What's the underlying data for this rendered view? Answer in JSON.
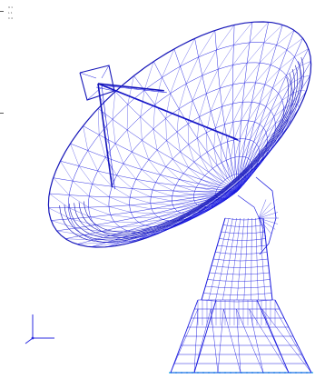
{
  "view": {
    "wire_color": "#1a1adf",
    "dense_color": "#1515b8",
    "axis_color": "#2a2ae0",
    "base_line_color": "#18a8e8",
    "background": "#ffffff"
  },
  "legend": {
    "lines": [
      "U  1",
      "L  1",
      "C  4"
    ]
  },
  "triad": {
    "x_label": "",
    "y_label": "",
    "z_label": ""
  }
}
